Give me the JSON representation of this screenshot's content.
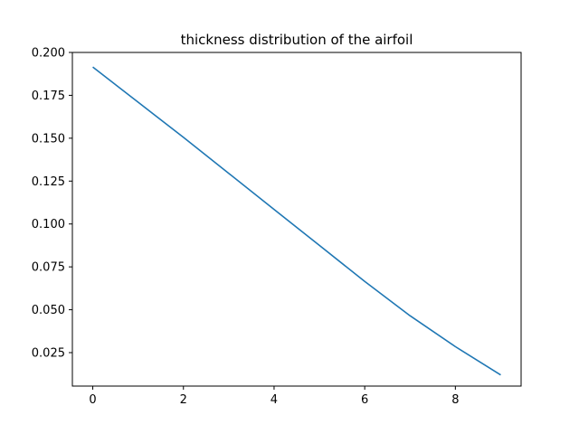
{
  "chart_data": {
    "type": "line",
    "title": "thickness distribution of the airfoil",
    "xlabel": "",
    "ylabel": "",
    "xlim": [
      -0.45,
      9.45
    ],
    "ylim": [
      0.0055,
      0.2
    ],
    "xticks": [
      0,
      2,
      4,
      6,
      8
    ],
    "xtick_labels": [
      "0",
      "2",
      "4",
      "6",
      "8"
    ],
    "yticks": [
      0.025,
      0.05,
      0.075,
      0.1,
      0.125,
      0.15,
      0.175,
      0.2
    ],
    "ytick_labels": [
      "0.025",
      "0.050",
      "0.075",
      "0.100",
      "0.125",
      "0.150",
      "0.175",
      "0.200"
    ],
    "grid": false,
    "series": [
      {
        "color": "#1f77b4",
        "x": [
          0,
          1,
          2,
          3,
          4,
          5,
          6,
          7,
          8,
          9
        ],
        "y": [
          0.1915,
          0.171,
          0.1505,
          0.1295,
          0.1085,
          0.0875,
          0.0665,
          0.0465,
          0.0285,
          0.012
        ]
      }
    ]
  }
}
